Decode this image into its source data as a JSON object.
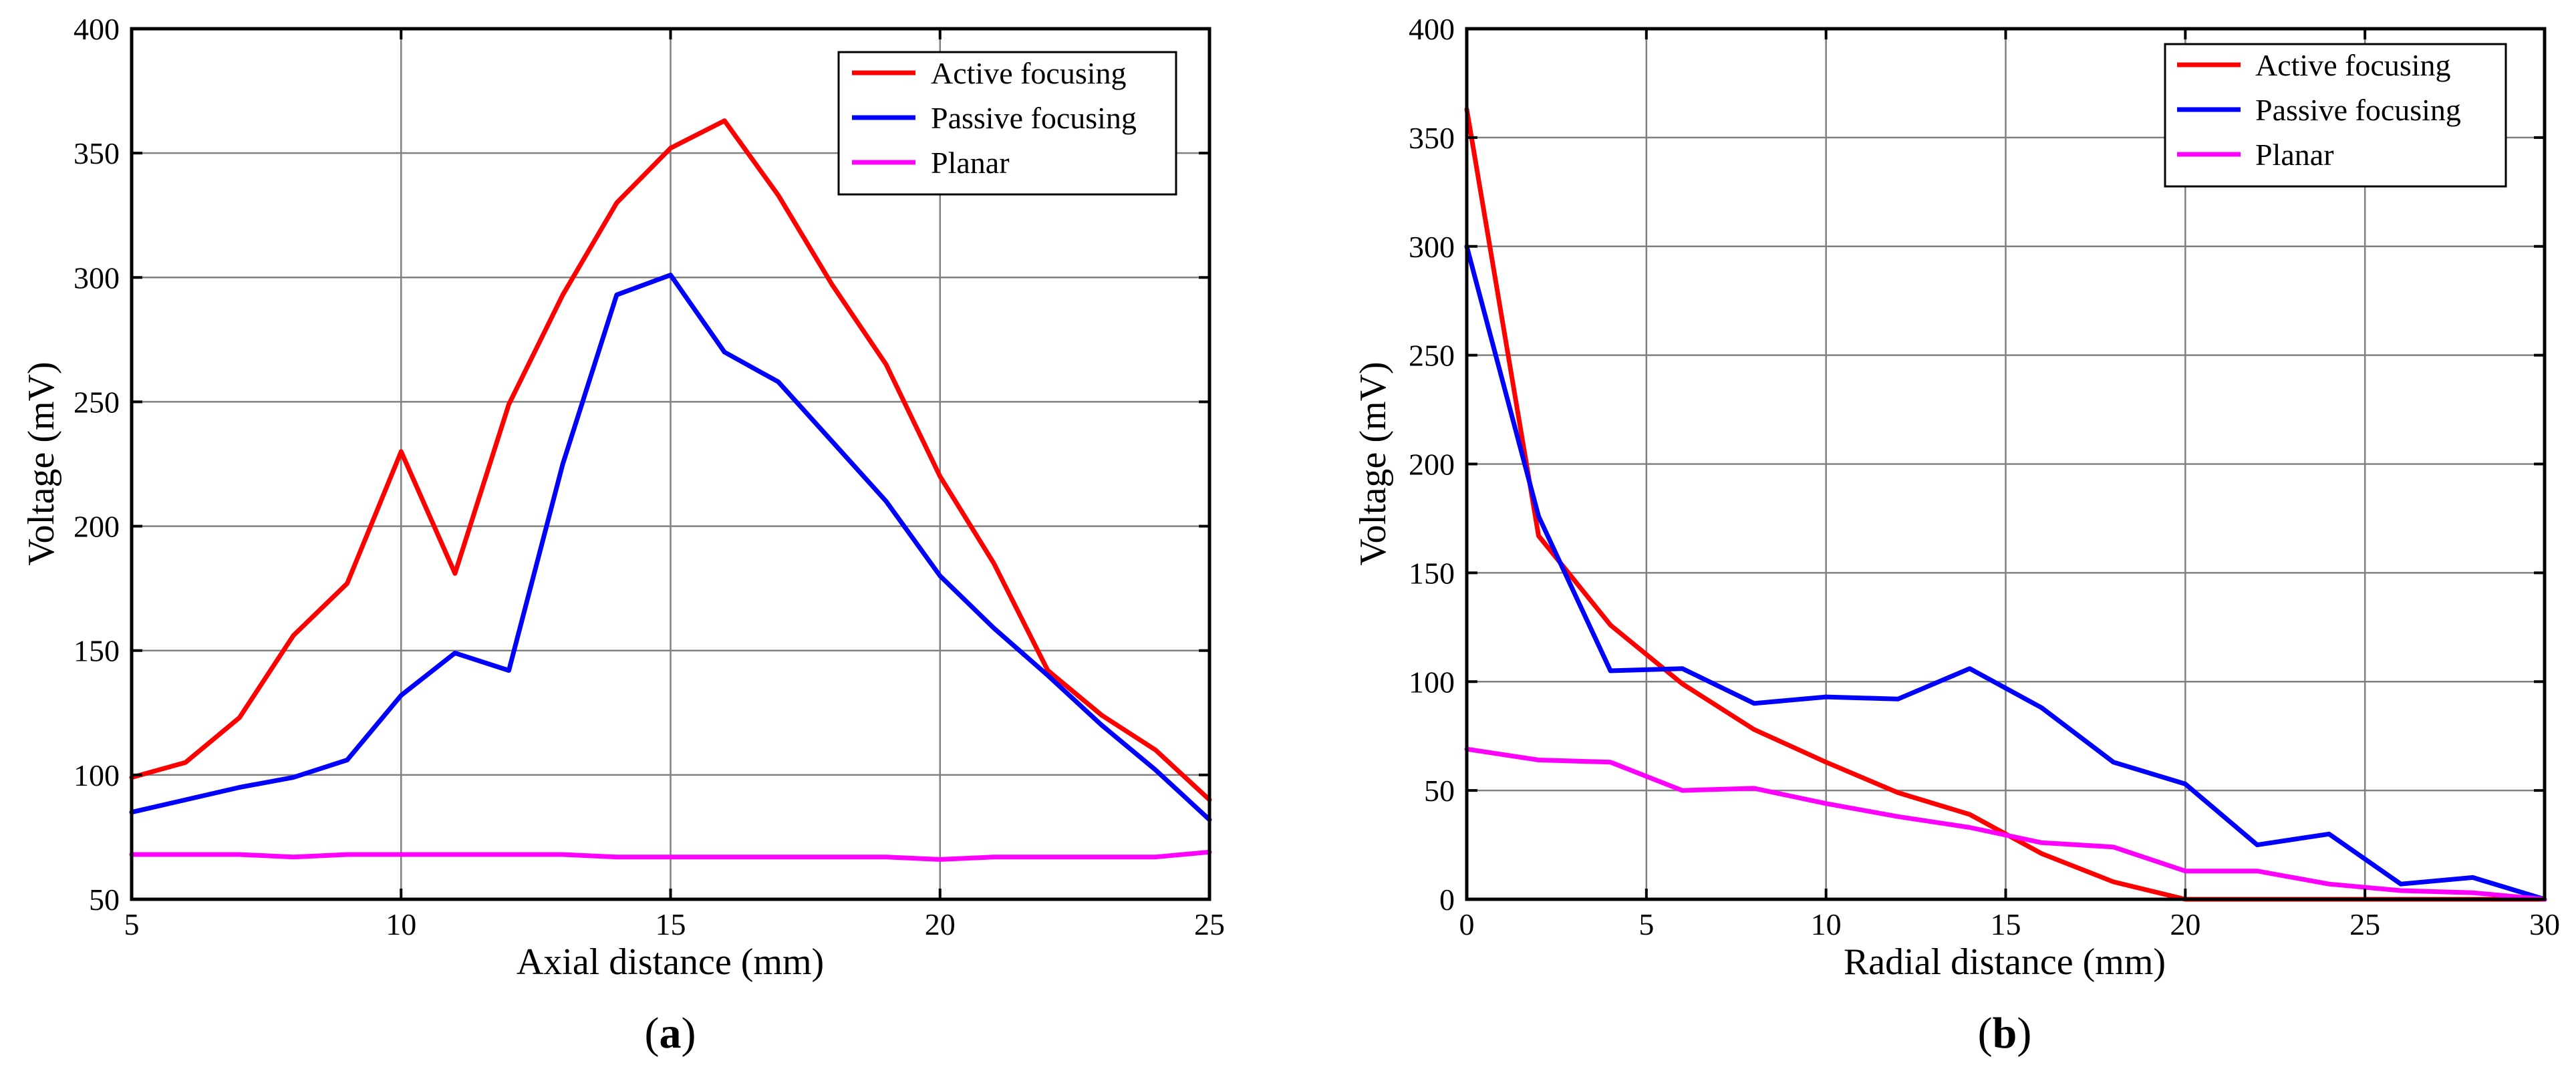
{
  "chart_data": [
    {
      "type": "line",
      "panel_label": "a",
      "xlabel": "Axial distance (mm)",
      "ylabel": "Voltage (mV)",
      "xlim": [
        5,
        25
      ],
      "ylim": [
        50,
        400
      ],
      "xticks": [
        5,
        10,
        15,
        20,
        25
      ],
      "yticks": [
        50,
        100,
        150,
        200,
        250,
        300,
        350,
        400
      ],
      "grid": true,
      "legend_position": "top-right",
      "x": [
        5,
        6,
        7,
        8,
        9,
        10,
        11,
        12,
        13,
        14,
        15,
        16,
        17,
        18,
        19,
        20,
        21,
        22,
        23,
        24,
        25
      ],
      "series": [
        {
          "name": "Active focusing",
          "color": "#ff0000",
          "values": [
            99,
            105,
            123,
            156,
            177,
            230,
            181,
            249,
            293,
            330,
            352,
            363,
            333,
            297,
            265,
            220,
            185,
            142,
            124,
            110,
            90
          ]
        },
        {
          "name": "Passive focusing",
          "color": "#0000ff",
          "values": [
            85,
            90,
            95,
            99,
            106,
            132,
            149,
            142,
            225,
            293,
            301,
            270,
            258,
            234,
            210,
            180,
            159,
            140,
            120,
            102,
            82
          ]
        },
        {
          "name": "Planar",
          "color": "#ff00ff",
          "values": [
            68,
            68,
            68,
            67,
            68,
            68,
            68,
            68,
            68,
            67,
            67,
            67,
            67,
            67,
            67,
            66,
            67,
            67,
            67,
            67,
            69
          ]
        }
      ]
    },
    {
      "type": "line",
      "panel_label": "b",
      "xlabel": "Radial distance (mm)",
      "ylabel": "Voltage (mV)",
      "xlim": [
        0,
        30
      ],
      "ylim": [
        0,
        400
      ],
      "xticks": [
        0,
        5,
        10,
        15,
        20,
        25,
        30
      ],
      "yticks": [
        0,
        50,
        100,
        150,
        200,
        250,
        300,
        350,
        400
      ],
      "grid": true,
      "legend_position": "top-right",
      "x": [
        0,
        2,
        4,
        6,
        8,
        10,
        12,
        14,
        16,
        18,
        20,
        22,
        24,
        26,
        28,
        30
      ],
      "series": [
        {
          "name": "Active focusing",
          "color": "#ff0000",
          "values": [
            363,
            167,
            126,
            99,
            78,
            63,
            49,
            39,
            21,
            8,
            0,
            0,
            0,
            0,
            0,
            0
          ]
        },
        {
          "name": "Passive focusing",
          "color": "#0000ff",
          "values": [
            300,
            176,
            105,
            106,
            90,
            93,
            92,
            106,
            88,
            63,
            53,
            25,
            30,
            7,
            10,
            0
          ]
        },
        {
          "name": "Planar",
          "color": "#ff00ff",
          "values": [
            69,
            64,
            63,
            50,
            51,
            44,
            38,
            33,
            26,
            24,
            13,
            13,
            7,
            4,
            3,
            0
          ]
        }
      ]
    }
  ]
}
